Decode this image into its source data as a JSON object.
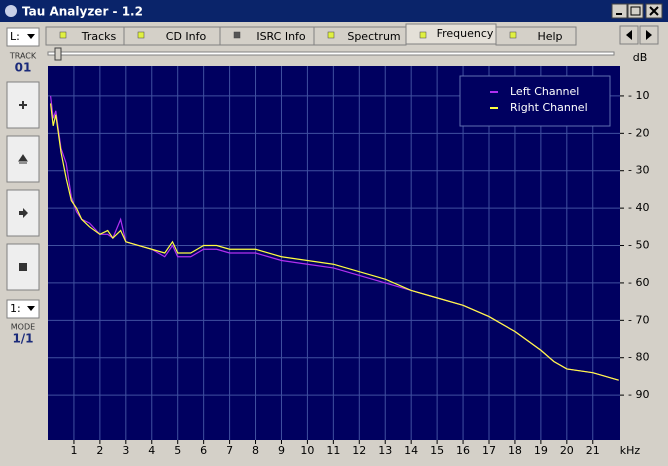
{
  "window": {
    "title": "Tau Analyzer - 1.2",
    "tabs": [
      "Tracks",
      "CD Info",
      "ISRC Info",
      "Spectrum",
      "Frequency",
      "Help"
    ],
    "active_tab": "Frequency",
    "side": {
      "channel": "L:",
      "track_label": "TRACK",
      "track": "01",
      "mode_select": "1:",
      "mode_label": "MODE",
      "mode": "1/1"
    }
  },
  "chart_data": {
    "type": "line",
    "x_label": "kHz",
    "y_label": "dB",
    "xlim": [
      0,
      22.05
    ],
    "ylim": [
      -102,
      -2
    ],
    "xticks": [
      1,
      2,
      3,
      4,
      5,
      6,
      7,
      8,
      9,
      10,
      11,
      12,
      13,
      14,
      15,
      16,
      17,
      18,
      19,
      20,
      21
    ],
    "yticks": [
      {
        "value": -10,
        "label": "- 10"
      },
      {
        "value": -20,
        "label": "- 20"
      },
      {
        "value": -30,
        "label": "- 30"
      },
      {
        "value": -40,
        "label": "- 40"
      },
      {
        "value": -50,
        "label": "- 50"
      },
      {
        "value": -60,
        "label": "- 60"
      },
      {
        "value": -70,
        "label": "- 70"
      },
      {
        "value": -80,
        "label": "- 80"
      },
      {
        "value": -90,
        "label": "- 90"
      }
    ],
    "grid": true,
    "legend": "top-right",
    "x": [
      0.1,
      0.2,
      0.3,
      0.5,
      0.7,
      0.9,
      1.1,
      1.3,
      1.6,
      2,
      2.3,
      2.5,
      2.8,
      3,
      3.5,
      4,
      4.5,
      4.8,
      5,
      5.5,
      6,
      6.5,
      7,
      8,
      9,
      10,
      11,
      12,
      13,
      14,
      15,
      16,
      17,
      18,
      19,
      19.5,
      20,
      21,
      22
    ],
    "series": [
      {
        "name": "Left Channel",
        "color": "#b030f0",
        "values": [
          -10,
          -16,
          -14,
          -24,
          -28,
          -37,
          -41,
          -43,
          -44,
          -47,
          -47,
          -48,
          -43,
          -49,
          -50,
          -51,
          -53,
          -50,
          -53,
          -53,
          -51,
          -51,
          -52,
          -52,
          -54,
          -55,
          -56,
          -58,
          -60,
          -62,
          -64,
          -66,
          -69,
          -73,
          -78,
          -81,
          -83,
          -84,
          -86
        ]
      },
      {
        "name": "Right Channel",
        "color": "#ffff40",
        "values": [
          -12,
          -18,
          -15,
          -25,
          -32,
          -38,
          -40,
          -43,
          -45,
          -47,
          -46,
          -48,
          -46,
          -49,
          -50,
          -51,
          -52,
          -49,
          -52,
          -52,
          -50,
          -50,
          -51,
          -51,
          -53,
          -54,
          -55,
          -57,
          -59,
          -62,
          -64,
          -66,
          -69,
          -73,
          -78,
          -81,
          -83,
          -84,
          -86
        ]
      }
    ]
  }
}
